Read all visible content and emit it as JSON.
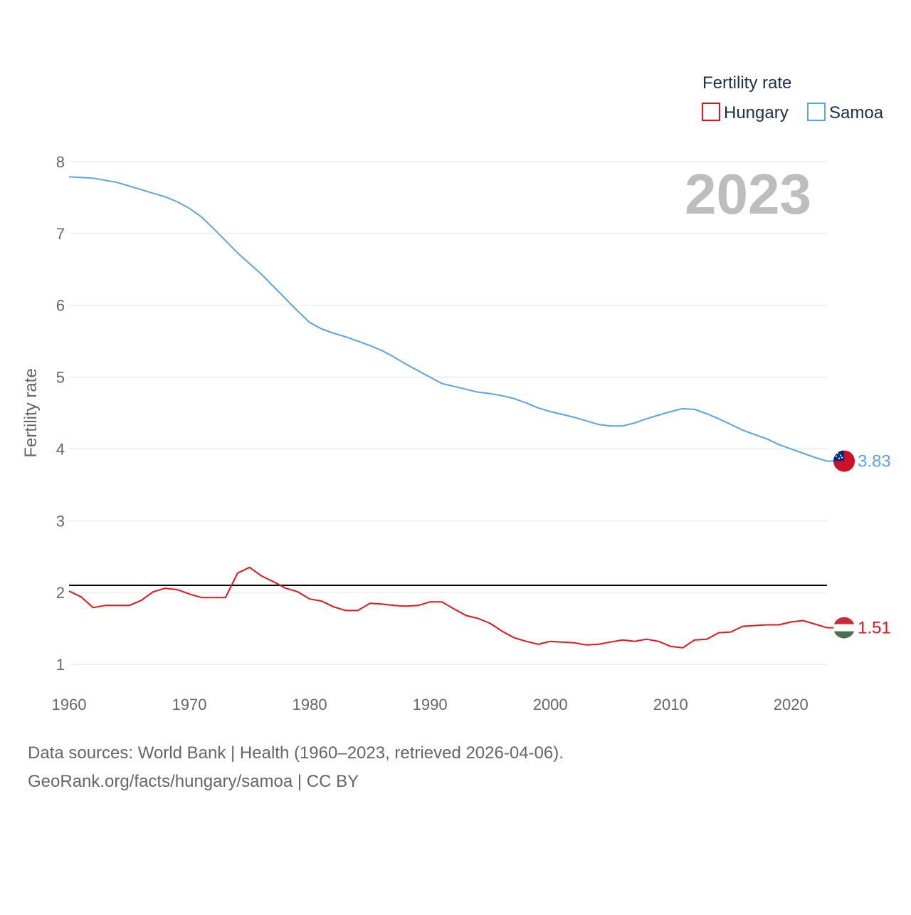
{
  "chart_data": {
    "type": "line",
    "title": "",
    "legend_title": "Fertility rate",
    "current_year_label": "2023",
    "xlabel": "",
    "ylabel": "Fertility rate",
    "xlim": [
      1960,
      2023
    ],
    "ylim": [
      0.7,
      8.1
    ],
    "x_ticks": [
      1960,
      1970,
      1980,
      1990,
      2000,
      2010,
      2020
    ],
    "y_ticks": [
      1,
      2,
      3,
      4,
      5,
      6,
      7,
      8
    ],
    "grid": true,
    "legend_position": "top-right",
    "reference_line": {
      "value": 2.1,
      "color": "#000000"
    },
    "x": [
      1960,
      1961,
      1962,
      1963,
      1964,
      1965,
      1966,
      1967,
      1968,
      1969,
      1970,
      1971,
      1972,
      1973,
      1974,
      1975,
      1976,
      1977,
      1978,
      1979,
      1980,
      1981,
      1982,
      1983,
      1984,
      1985,
      1986,
      1987,
      1988,
      1989,
      1990,
      1991,
      1992,
      1993,
      1994,
      1995,
      1996,
      1997,
      1998,
      1999,
      2000,
      2001,
      2002,
      2003,
      2004,
      2005,
      2006,
      2007,
      2008,
      2009,
      2010,
      2011,
      2012,
      2013,
      2014,
      2015,
      2016,
      2017,
      2018,
      2019,
      2020,
      2021,
      2022,
      2023
    ],
    "series": [
      {
        "name": "Hungary",
        "color": "#e8131a",
        "end_label": "1.51",
        "flag": "hungary-flag",
        "values": [
          2.02,
          1.94,
          1.79,
          1.82,
          1.82,
          1.82,
          1.89,
          2.01,
          2.06,
          2.04,
          1.98,
          1.93,
          1.93,
          1.93,
          2.27,
          2.35,
          2.23,
          2.15,
          2.06,
          2.01,
          1.91,
          1.88,
          1.8,
          1.75,
          1.75,
          1.85,
          1.84,
          1.82,
          1.81,
          1.82,
          1.87,
          1.87,
          1.77,
          1.68,
          1.64,
          1.57,
          1.46,
          1.37,
          1.32,
          1.28,
          1.32,
          1.31,
          1.3,
          1.27,
          1.28,
          1.31,
          1.34,
          1.32,
          1.35,
          1.32,
          1.25,
          1.23,
          1.34,
          1.35,
          1.44,
          1.45,
          1.53,
          1.54,
          1.55,
          1.55,
          1.59,
          1.61,
          1.56,
          1.51
        ]
      },
      {
        "name": "Samoa",
        "color": "#5ba3e6",
        "end_label": "3.83",
        "flag": "samoa-flag",
        "values": [
          7.79,
          7.78,
          7.77,
          7.74,
          7.71,
          7.66,
          7.61,
          7.56,
          7.51,
          7.44,
          7.35,
          7.23,
          7.07,
          6.9,
          6.73,
          6.58,
          6.43,
          6.26,
          6.09,
          5.92,
          5.76,
          5.67,
          5.61,
          5.56,
          5.5,
          5.44,
          5.37,
          5.28,
          5.18,
          5.09,
          5.0,
          4.91,
          4.87,
          4.83,
          4.79,
          4.77,
          4.74,
          4.7,
          4.64,
          4.57,
          4.52,
          4.48,
          4.44,
          4.39,
          4.34,
          4.32,
          4.32,
          4.36,
          4.42,
          4.47,
          4.52,
          4.56,
          4.55,
          4.49,
          4.42,
          4.34,
          4.26,
          4.2,
          4.14,
          4.06,
          4.0,
          3.94,
          3.88,
          3.83
        ]
      }
    ]
  },
  "footer": {
    "line1": "Data sources: World Bank | Health (1960–2023, retrieved 2026-04-06).",
    "line2": "GeoRank.org/facts/hungary/samoa | CC BY"
  }
}
